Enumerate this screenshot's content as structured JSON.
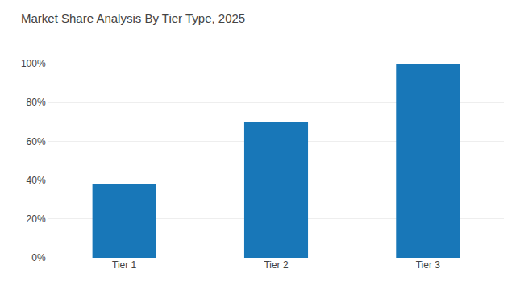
{
  "chart_data": {
    "type": "bar",
    "title": "Market Share Analysis By Tier Type, 2025",
    "categories": [
      "Tier 1",
      "Tier 2",
      "Tier 3"
    ],
    "values": [
      38,
      70,
      100
    ],
    "color": "#1877B8",
    "ylim": [
      0,
      110
    ],
    "yticks": [
      {
        "value": 0,
        "label": "0%"
      },
      {
        "value": 20,
        "label": "20%"
      },
      {
        "value": 40,
        "label": "40%"
      },
      {
        "value": 60,
        "label": "60%"
      },
      {
        "value": 80,
        "label": "80%"
      },
      {
        "value": 100,
        "label": "100%"
      }
    ],
    "grid": true
  }
}
